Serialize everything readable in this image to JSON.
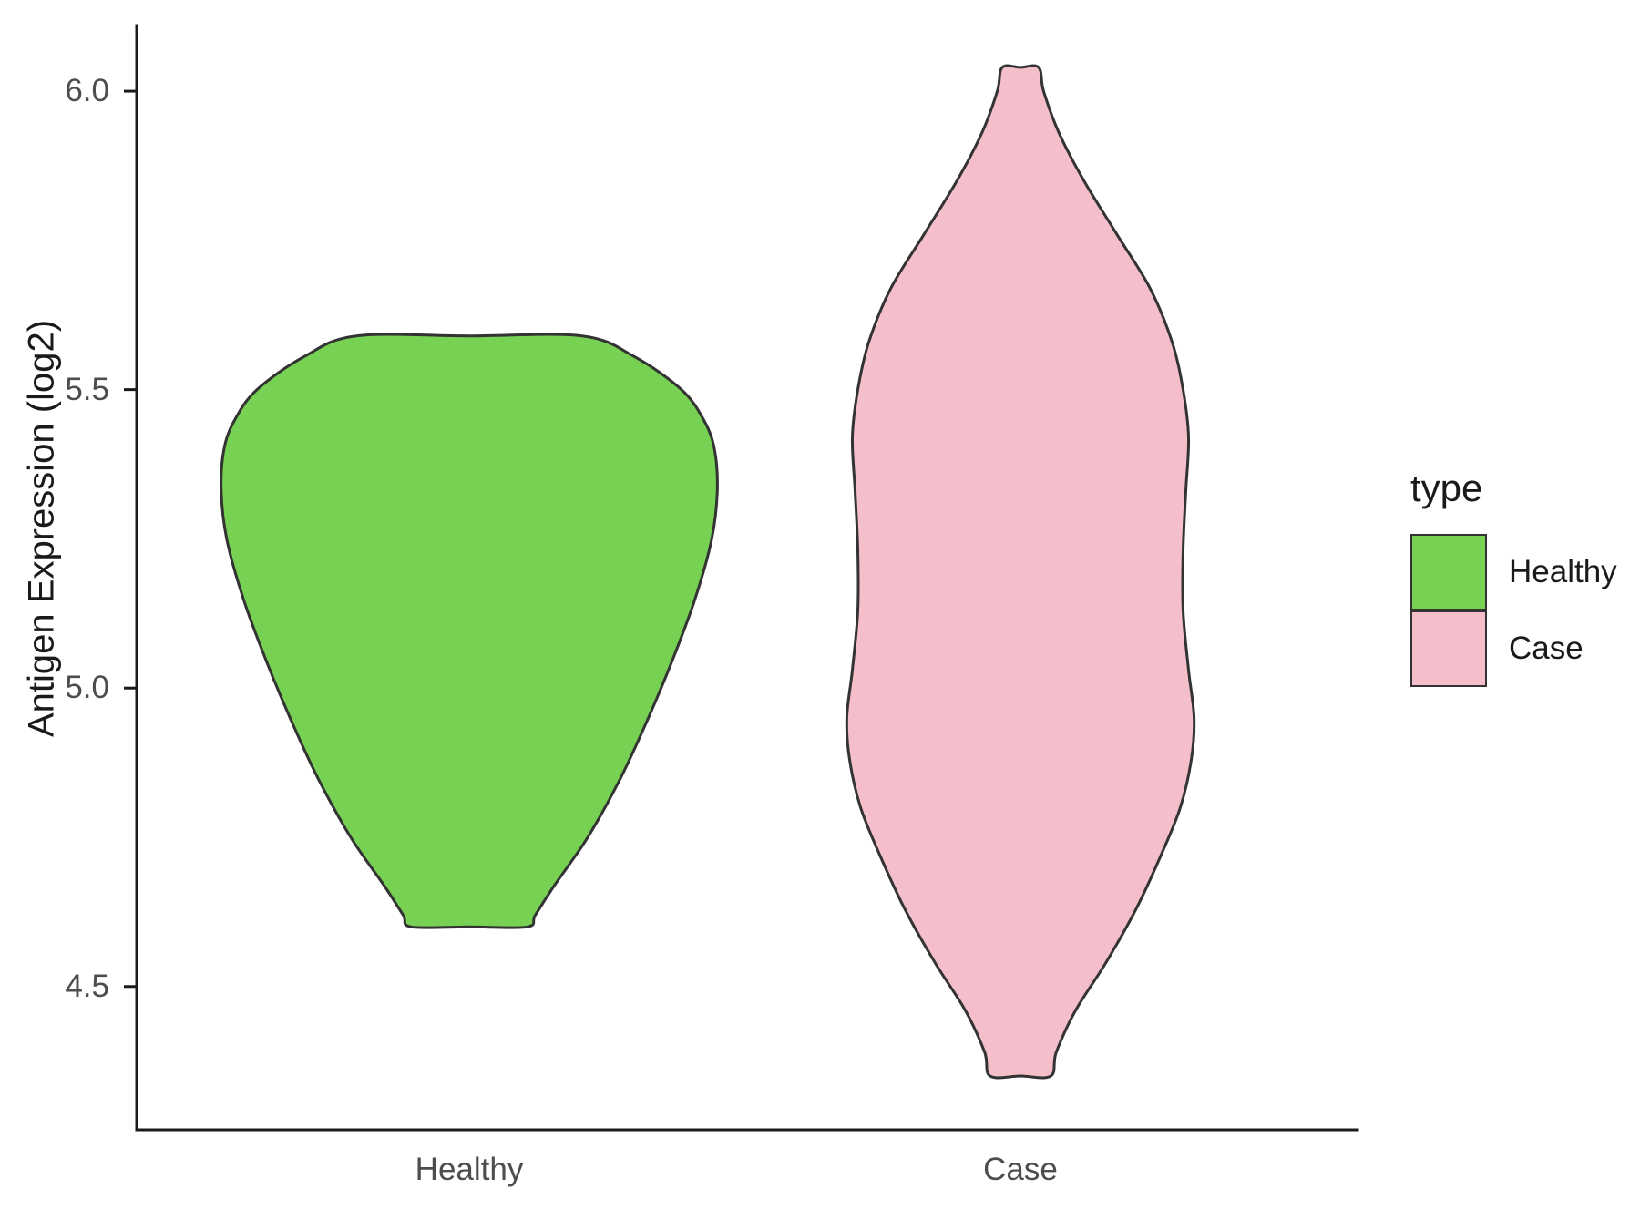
{
  "figure": {
    "background": "#FFFFFF",
    "axis_color": "#1A1A1A",
    "tick_label_color": "#4D4D4D"
  },
  "chart_data": {
    "type": "violin",
    "title": "",
    "xlabel": "",
    "ylabel": "Antigen Expression (log2)",
    "categories": [
      "Healthy",
      "Case"
    ],
    "ylim": [
      4.26,
      6.11
    ],
    "y_ticks": [
      {
        "value": 4.5,
        "label": "4.5"
      },
      {
        "value": 5.0,
        "label": "5.0"
      },
      {
        "value": 5.5,
        "label": "5.5"
      },
      {
        "value": 6.0,
        "label": "6.0"
      }
    ],
    "grid": "off",
    "legend": {
      "title": "type",
      "position": "right",
      "entries": [
        {
          "label": "Healthy",
          "color": "#77D153"
        },
        {
          "label": "Case",
          "color": "#F4BFCA"
        }
      ]
    },
    "series": [
      {
        "name": "Healthy",
        "category": "Healthy",
        "fill": "#77D153",
        "stroke": "#333333",
        "y_min": 4.6,
        "y_max": 5.59,
        "profile_note": "pairs of [value, halfwidth in category-spacing units]",
        "profile": [
          [
            5.59,
            0.205
          ],
          [
            5.555,
            0.3
          ],
          [
            5.5,
            0.385
          ],
          [
            5.45,
            0.425
          ],
          [
            5.4,
            0.445
          ],
          [
            5.33,
            0.45
          ],
          [
            5.25,
            0.44
          ],
          [
            5.15,
            0.41
          ],
          [
            5.05,
            0.37
          ],
          [
            4.95,
            0.325
          ],
          [
            4.85,
            0.275
          ],
          [
            4.75,
            0.215
          ],
          [
            4.67,
            0.155
          ],
          [
            4.62,
            0.12
          ],
          [
            4.6,
            0.105
          ]
        ]
      },
      {
        "name": "Case",
        "category": "Case",
        "fill": "#F4BFCA",
        "stroke": "#333333",
        "y_min": 4.35,
        "y_max": 6.04,
        "profile_note": "pairs of [value, halfwidth in category-spacing units]",
        "profile": [
          [
            6.04,
            0.033
          ],
          [
            6.0,
            0.042
          ],
          [
            5.93,
            0.07
          ],
          [
            5.85,
            0.115
          ],
          [
            5.76,
            0.175
          ],
          [
            5.67,
            0.235
          ],
          [
            5.58,
            0.275
          ],
          [
            5.5,
            0.295
          ],
          [
            5.42,
            0.305
          ],
          [
            5.33,
            0.3
          ],
          [
            5.23,
            0.295
          ],
          [
            5.13,
            0.295
          ],
          [
            5.03,
            0.305
          ],
          [
            4.95,
            0.315
          ],
          [
            4.88,
            0.31
          ],
          [
            4.8,
            0.29
          ],
          [
            4.72,
            0.255
          ],
          [
            4.63,
            0.21
          ],
          [
            4.54,
            0.155
          ],
          [
            4.46,
            0.1
          ],
          [
            4.39,
            0.065
          ],
          [
            4.35,
            0.055
          ]
        ]
      }
    ]
  }
}
